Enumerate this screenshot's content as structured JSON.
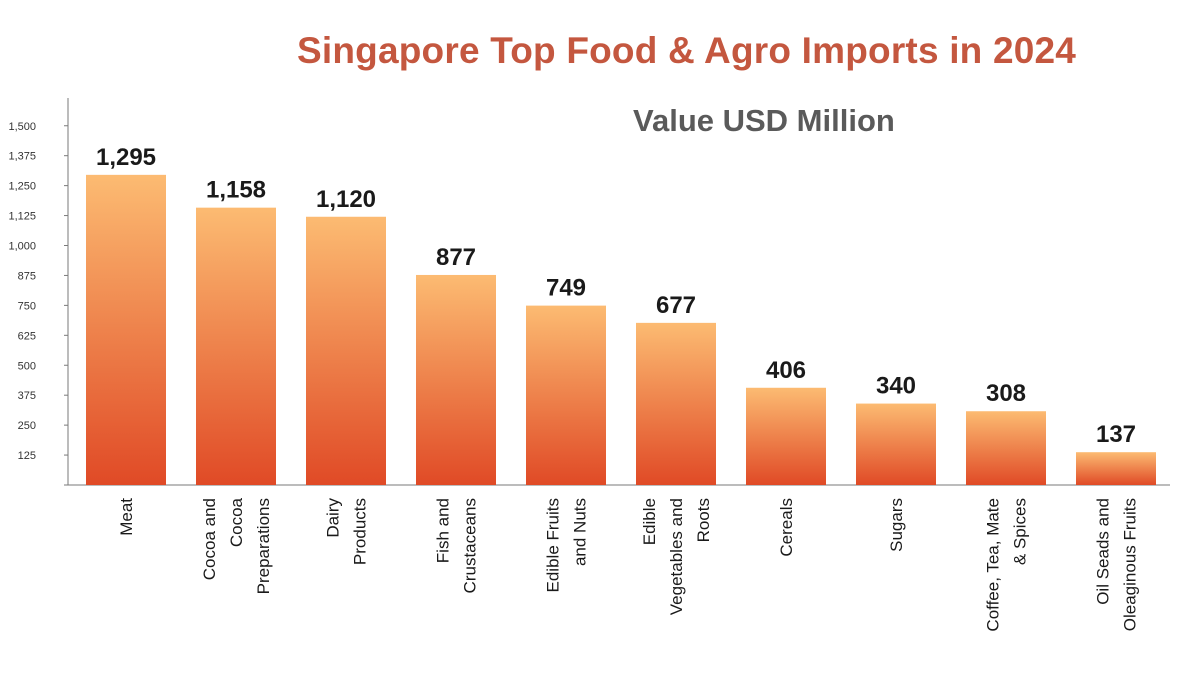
{
  "title": "Singapore Top Food & Agro Imports in 2024",
  "subtitle": "Value USD Million",
  "colors": {
    "bar_top": "#fcbb72",
    "bar_bottom": "#e04a26",
    "title": "#c4573f",
    "subtitle": "#5a5a5a"
  },
  "chart_data": {
    "type": "bar",
    "title": "Singapore Top Food & Agro Imports in 2024",
    "subtitle": "Value USD Million",
    "categories": [
      [
        "Meat"
      ],
      [
        "Cocoa and",
        "Cocoa",
        "Preparations"
      ],
      [
        "Dairy",
        "Products"
      ],
      [
        "Fish and",
        "Crustaceans"
      ],
      [
        "Edible Fruits",
        "and Nuts"
      ],
      [
        "Edible",
        "Vegetables and",
        "Roots"
      ],
      [
        "Cereals"
      ],
      [
        "Sugars"
      ],
      [
        "Coffee, Tea, Mate",
        "& Spices"
      ],
      [
        "Oil Seads and",
        "Oleaginous Fruits"
      ]
    ],
    "values": [
      1295,
      1158,
      1120,
      877,
      749,
      677,
      406,
      340,
      308,
      137
    ],
    "value_labels": [
      "1,295",
      "1,158",
      "1,120",
      "877",
      "749",
      "677",
      "406",
      "340",
      "308",
      "137"
    ],
    "y_ticks": [
      125,
      250,
      375,
      500,
      625,
      750,
      875,
      1000,
      1125,
      1250,
      1375,
      1500
    ],
    "y_tick_labels": [
      "125",
      "250",
      "375",
      "500",
      "625",
      "750",
      "875",
      "1,000",
      "1,125",
      "1,250",
      "1,375",
      "1,500"
    ],
    "ylim": [
      0,
      1600
    ],
    "grid": false,
    "legend": "none",
    "category_label_orientation": "vertical"
  }
}
